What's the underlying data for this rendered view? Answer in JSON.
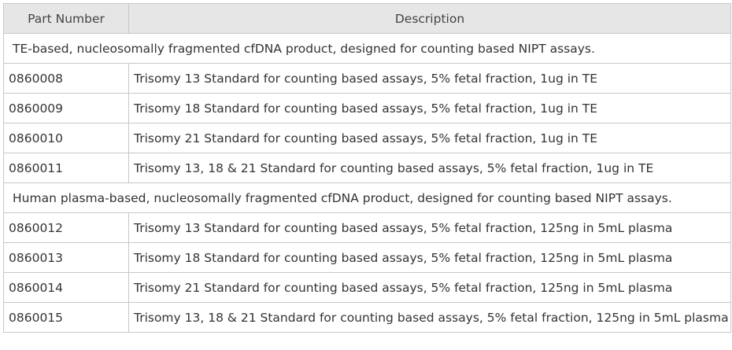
{
  "table": {
    "headers": [
      "Part Number",
      "Description"
    ],
    "groups": [
      {
        "title": "TE-based, nucleosomally fragmented cfDNA product, designed for counting based NIPT assays.",
        "rows": [
          {
            "part": "0860008",
            "description": "Trisomy 13 Standard for counting based assays, 5% fetal fraction, 1ug in TE"
          },
          {
            "part": "0860009",
            "description": "Trisomy 18 Standard for counting based assays, 5% fetal fraction, 1ug in TE"
          },
          {
            "part": "0860010",
            "description": "Trisomy 21 Standard for counting based assays, 5% fetal fraction, 1ug in TE"
          },
          {
            "part": "0860011",
            "description": "Trisomy 13, 18 & 21 Standard for counting based assays, 5% fetal fraction, 1ug in TE"
          }
        ]
      },
      {
        "title": "Human plasma-based, nucleosomally fragmented cfDNA product, designed for counting based NIPT assays.",
        "rows": [
          {
            "part": "0860012",
            "description": "Trisomy 13 Standard for counting based assays, 5% fetal fraction, 125ng in 5mL plasma"
          },
          {
            "part": "0860013",
            "description": "Trisomy 18 Standard for counting based assays, 5% fetal fraction, 125ng in 5mL plasma"
          },
          {
            "part": "0860014",
            "description": "Trisomy 21 Standard for counting based assays, 5% fetal fraction, 125ng in 5mL plasma"
          },
          {
            "part": "0860015",
            "description": "Trisomy 13, 18 & 21 Standard for counting based assays, 5% fetal fraction, 125ng in 5mL plasma"
          }
        ]
      }
    ]
  }
}
